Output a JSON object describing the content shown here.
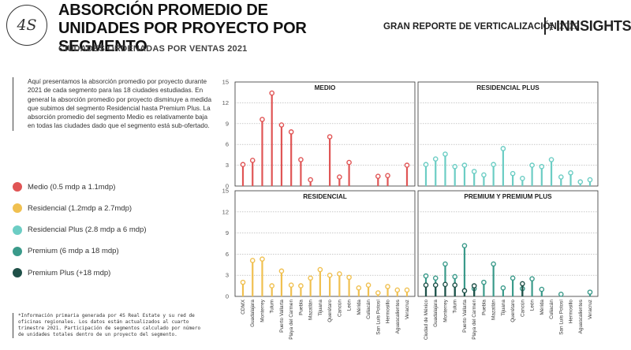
{
  "header": {
    "logo_text": "4S",
    "title": "ABSORCIÓN PROMEDIO DE UNIDADES POR PROYECTO POR SEGMENTO",
    "subtitle": "CIUDADES ORDENADAS POR VENTAS 2021",
    "report": "GRAN REPORTE DE VERTICALIZACIÓN",
    "report_year": "2022",
    "brand_small": "THE",
    "brand_big": "INNSIGHTS"
  },
  "intro": "Aquí presentamos la absorción promedio por proyecto durante 2021 de cada segmento para las 18 ciudades estudiadas. En general la absorción promedio por proyecto disminuye a medida que subimos del segmento Residencial hasta Premium Plus. La absorción promedio del segmento Medio es relativamente baja en todas las ciudades dado que el segmento está sub-ofertado.",
  "legend": [
    {
      "label": "Medio (0.5 mdp a 1.1mdp)",
      "color": "#e05555"
    },
    {
      "label": "Residencial (1.2mdp a 2.7mdp)",
      "color": "#f0c050"
    },
    {
      "label": "Residencial Plus (2.8 mdp a 6 mdp)",
      "color": "#6ccdc4"
    },
    {
      "label": "Premium (6 mdp a 18 mdp)",
      "color": "#3a9a8a"
    },
    {
      "label": "Premium Plus (+18 mdp)",
      "color": "#1f5048"
    }
  ],
  "footnote": "*Información primaria generada por 4S Real Estate y su red de oficinas regionales. Los datos están actualizados al cuarto trimestre 2021. Participación de segmentos calculado por número de unidades totales dentro de un proyecto del segmento.",
  "chart_data": [
    {
      "type": "lollipop",
      "title": "MEDIO",
      "ylim": [
        0,
        15
      ],
      "yticks": [
        "0",
        "3",
        "6",
        "9",
        "12",
        "15"
      ],
      "categories": [
        "CDMX",
        "Guadalajara",
        "Monterrey",
        "Tulum",
        "Puerto Vallarta",
        "Playa del Carmen",
        "Puebla",
        "Mazatlán",
        "Tijuana",
        "Querétaro",
        "Cancún",
        "León",
        "Mérida",
        "Culiacán",
        "San Luis Potosí",
        "Hermosillo",
        "Aguascalientes",
        "Veracruz"
      ],
      "series": [
        {
          "color": "#e05555",
          "values": [
            3.1,
            3.7,
            9.6,
            13.4,
            8.8,
            7.8,
            3.8,
            0.9,
            0,
            7.1,
            1.3,
            3.4,
            0,
            0,
            1.4,
            1.5,
            0,
            3.0
          ]
        }
      ]
    },
    {
      "type": "lollipop",
      "title": "RESIDENCIAL PLUS",
      "ylim": [
        0,
        15
      ],
      "yticks": [
        "0",
        "3",
        "6",
        "9",
        "12",
        "15"
      ],
      "categories": [
        "Ciudad de México",
        "Guadalajara",
        "Monterrey",
        "Tulum",
        "Puerto Vallarta",
        "Playa del Carmen",
        "Puebla",
        "Mazatlán",
        "Tijuana",
        "Querétaro",
        "Cancún",
        "León",
        "Mérida",
        "Culiacán",
        "San Luis Potosí",
        "Hermosillo",
        "Aguascalientes",
        "Veracruz"
      ],
      "series": [
        {
          "color": "#6ccdc4",
          "values": [
            3.1,
            3.9,
            4.6,
            2.8,
            3.0,
            2.1,
            1.6,
            3.1,
            5.4,
            1.8,
            1.1,
            3.0,
            2.8,
            3.8,
            1.3,
            1.9,
            0.6,
            0.9
          ]
        }
      ]
    },
    {
      "type": "lollipop",
      "title": "RESIDENCIAL",
      "ylim": [
        0,
        15
      ],
      "yticks": [
        "0",
        "3",
        "6",
        "9",
        "12",
        "15"
      ],
      "categories": [
        "CDMX",
        "Guadalajara",
        "Monterrey",
        "Tulum",
        "Puerto Vallarta",
        "Playa del Carmen",
        "Puebla",
        "Mazatlán",
        "Tijuana",
        "Querétaro",
        "Cancún",
        "León",
        "Mérida",
        "Culiacán",
        "San Luis Potosí",
        "Hermosillo",
        "Aguascalientes",
        "Veracruz"
      ],
      "series": [
        {
          "color": "#f0c050",
          "values": [
            2.0,
            5.1,
            5.3,
            1.5,
            3.6,
            1.6,
            1.5,
            2.6,
            3.8,
            3.0,
            3.2,
            2.7,
            1.2,
            1.6,
            0.5,
            1.4,
            0.9,
            0.9
          ]
        }
      ]
    },
    {
      "type": "lollipop",
      "title": "PREMIUM Y PREMIUM PLUS",
      "ylim": [
        0,
        15
      ],
      "yticks": [
        "0",
        "3",
        "6",
        "9",
        "12",
        "15"
      ],
      "categories": [
        "Ciudad de México",
        "Guadalajara",
        "Monterrey",
        "Tulum",
        "Puerto Vallarta",
        "Playa del Carmen",
        "Puebla",
        "Mazatlán",
        "Tijuana",
        "Querétaro",
        "Cancún",
        "León",
        "Mérida",
        "Culiacán",
        "San Luis Potosí",
        "Hermosillo",
        "Aguascalientes",
        "Veracruz"
      ],
      "series": [
        {
          "name": "Premium",
          "color": "#3a9a8a",
          "values": [
            2.9,
            2.6,
            4.6,
            2.8,
            7.2,
            1.1,
            2.0,
            4.6,
            1.2,
            2.6,
            1.1,
            2.5,
            1.0,
            0,
            0.3,
            0,
            0,
            0.6
          ]
        },
        {
          "name": "Premium Plus",
          "color": "#1f5048",
          "values": [
            1.6,
            1.6,
            1.7,
            1.6,
            0.8,
            1.5,
            0,
            0,
            0,
            0,
            1.8,
            0,
            0,
            0,
            0,
            0,
            0,
            0
          ]
        }
      ]
    }
  ]
}
